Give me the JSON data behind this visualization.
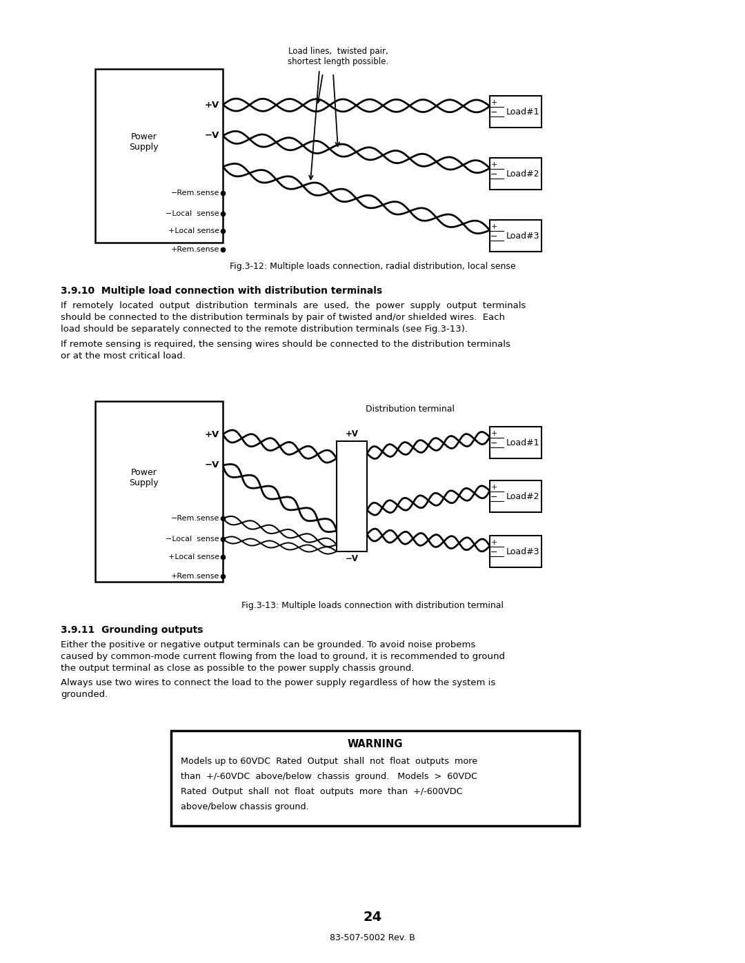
{
  "page_bg": "#ffffff",
  "fig_width": 10.8,
  "fig_height": 13.97,
  "section_310_title": "3.9.10  Multiple load connection with distribution terminals",
  "section_310_body1": "If remotely located output distribution terminals are used, the power supply output terminals should be connected to the distribution terminals by pair of twisted and/or shielded wires. Each load should be separately connected to the remote distribution terminals (see Fig.3-13).",
  "section_310_body2": "If remote sensing is required, the sensing wires should be connected to the distribution terminals or at the most critical load.",
  "section_311_title": "3.9.11  Grounding outputs",
  "section_311_body1": "Either the positive or negative output terminals can be grounded. To avoid noise probems caused by common-mode current flowing from the load to ground, it is recommended to ground the output terminal as close as possible to the power supply chassis ground.",
  "section_311_body2": "Always use two wires to connect the load to the power supply regardless of how the system is grounded.",
  "warning_title": "WARNING",
  "warning_body": "Models up to 60VDC Rated Output shall not float outputs more than +/-60VDC above/below chassis ground.  Models > 60VDC Rated Output shall not float outputs more than +/-600VDC above/below chassis ground.",
  "fig312_caption": "Fig.3-12: Multiple loads connection, radial distribution, local sense",
  "fig313_caption": "Fig.3-13: Multiple loads connection with distribution terminal",
  "page_num": "24",
  "doc_num": "83-507-5002 Rev. B"
}
